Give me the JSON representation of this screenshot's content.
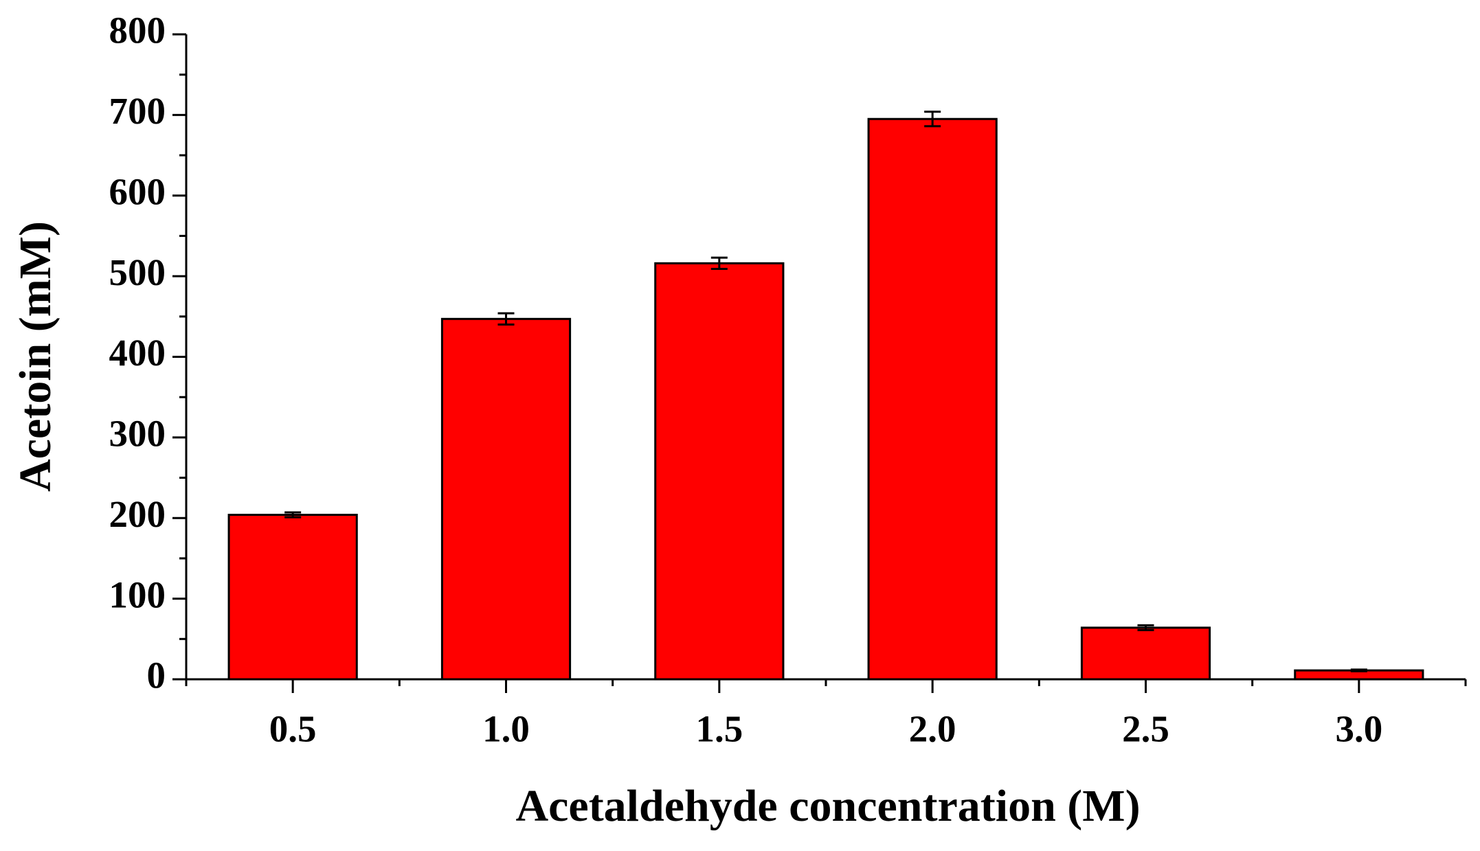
{
  "chart_data": {
    "type": "bar",
    "xlabel": "Acetaldehyde concentration (M)",
    "ylabel": "Acetoin (mM)",
    "categories": [
      "0.5",
      "1.0",
      "1.5",
      "2.0",
      "2.5",
      "3.0"
    ],
    "values": [
      204,
      447,
      516,
      695,
      64,
      11
    ],
    "errors": [
      3,
      7,
      7,
      9,
      3,
      1
    ],
    "color": "#ff0000",
    "ylim": [
      0,
      800
    ],
    "yticks": [
      0,
      100,
      200,
      300,
      400,
      500,
      600,
      700,
      800
    ],
    "grid": false
  }
}
